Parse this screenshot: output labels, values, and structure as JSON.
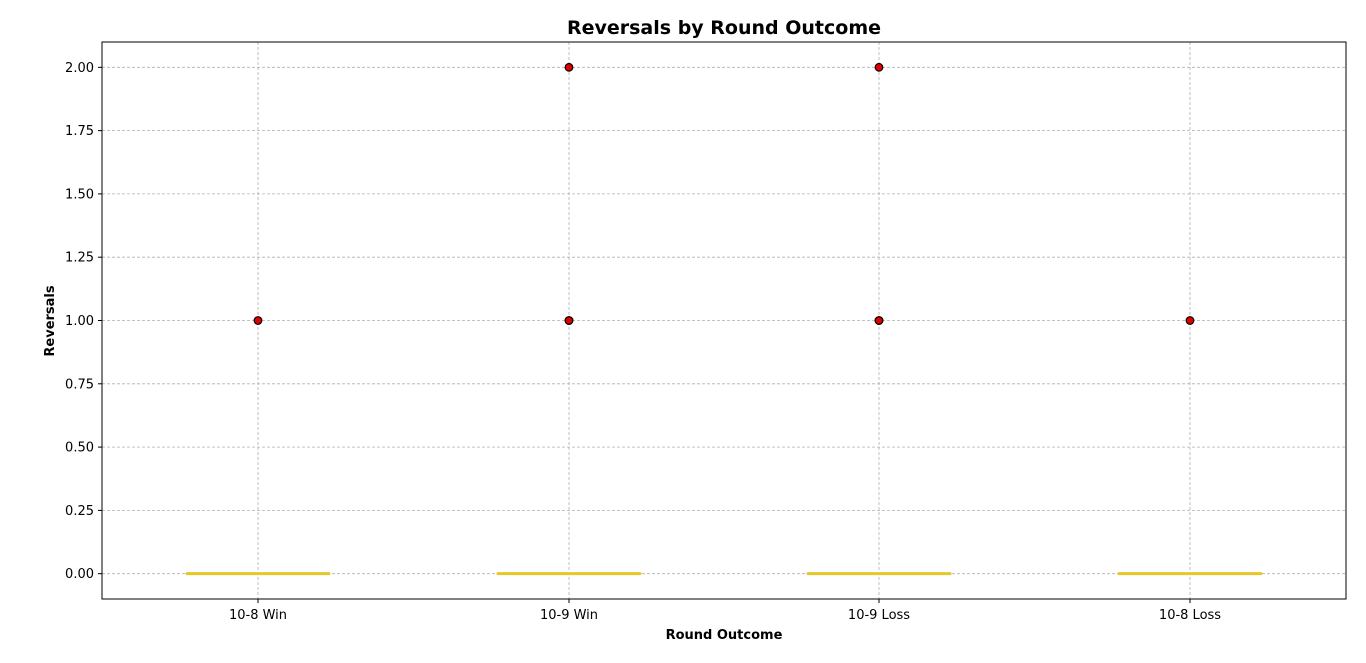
{
  "chart_data": {
    "type": "box",
    "title": "Reversals by Round Outcome",
    "xlabel": "Round Outcome",
    "ylabel": "Reversals",
    "categories": [
      "10-8 Win",
      "10-9 Win",
      "10-9 Loss",
      "10-8 Loss"
    ],
    "ylim": [
      -0.1,
      2.1
    ],
    "yticks": [
      0.0,
      0.25,
      0.5,
      0.75,
      1.0,
      1.25,
      1.5,
      1.75,
      2.0
    ],
    "grid": true,
    "boxes": [
      {
        "category": "10-8 Win",
        "q1": 0,
        "median": 0,
        "q3": 0,
        "whisker_low": 0,
        "whisker_high": 0,
        "outliers": [
          1
        ]
      },
      {
        "category": "10-9 Win",
        "q1": 0,
        "median": 0,
        "q3": 0,
        "whisker_low": 0,
        "whisker_high": 0,
        "outliers": [
          1,
          1,
          2
        ]
      },
      {
        "category": "10-9 Loss",
        "q1": 0,
        "median": 0,
        "q3": 0,
        "whisker_low": 0,
        "whisker_high": 0,
        "outliers": [
          1,
          1,
          2
        ]
      },
      {
        "category": "10-8 Loss",
        "q1": 0,
        "median": 0,
        "q3": 0,
        "whisker_low": 0,
        "whisker_high": 0,
        "outliers": [
          1
        ]
      }
    ],
    "colors": {
      "box": "#e6c72a",
      "outlier_fill": "#e00000",
      "outlier_edge": "#000000",
      "grid": "#b0b0b0"
    }
  }
}
